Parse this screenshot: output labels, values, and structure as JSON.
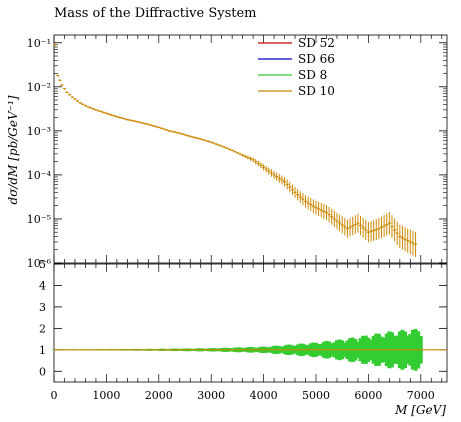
{
  "chart_data": [
    {
      "type": "scatter",
      "panel": "main",
      "title": "Mass of the Diffractive System",
      "xlabel": "",
      "ylabel": "dσ/dM [pb/GeV⁻¹]",
      "xlim": [
        0,
        7500
      ],
      "ylim": [
        1e-06,
        0.15
      ],
      "yscale": "log",
      "ytick_labels": [
        "10⁻¹",
        "10⁻²",
        "10⁻³",
        "10⁻⁴",
        "10⁻⁵",
        "10⁻⁶"
      ],
      "ytick_values": [
        0.1,
        0.01,
        0.001,
        0.0001,
        1e-05,
        1e-06
      ],
      "legend_position": "top-right",
      "series": [
        {
          "name": "SD 52",
          "color": "#cc0000"
        },
        {
          "name": "SD 66",
          "color": "#0000cc"
        },
        {
          "name": "SD 8",
          "color": "#33cc33"
        },
        {
          "name": "SD 10",
          "color": "#cc8800"
        }
      ],
      "points": [
        [
          25,
          0.09
        ],
        [
          75,
          0.018
        ],
        [
          150,
          0.011
        ],
        [
          250,
          0.0075
        ],
        [
          350,
          0.0058
        ],
        [
          500,
          0.0043
        ],
        [
          650,
          0.0035
        ],
        [
          800,
          0.003
        ],
        [
          1000,
          0.0025
        ],
        [
          1200,
          0.0021
        ],
        [
          1400,
          0.0018
        ],
        [
          1600,
          0.0016
        ],
        [
          1800,
          0.0014
        ],
        [
          2000,
          0.0012
        ],
        [
          2200,
          0.001
        ],
        [
          2400,
          0.00088
        ],
        [
          2600,
          0.00075
        ],
        [
          2800,
          0.00065
        ],
        [
          3000,
          0.00055
        ],
        [
          3200,
          0.00045
        ],
        [
          3400,
          0.00036
        ],
        [
          3600,
          0.00028
        ],
        [
          3800,
          0.00022
        ],
        [
          4000,
          0.00015
        ],
        [
          4200,
          0.0001
        ],
        [
          4400,
          7e-05
        ],
        [
          4600,
          4e-05
        ],
        [
          4800,
          2.5e-05
        ],
        [
          5000,
          1.8e-05
        ],
        [
          5200,
          1.4e-05
        ],
        [
          5400,
          9e-06
        ],
        [
          5600,
          6e-06
        ],
        [
          5800,
          8e-06
        ],
        [
          6000,
          5e-06
        ],
        [
          6200,
          6e-06
        ],
        [
          6400,
          8e-06
        ],
        [
          6600,
          4e-06
        ],
        [
          6800,
          3e-06
        ],
        [
          6950,
          2.5e-06
        ]
      ]
    },
    {
      "type": "line",
      "panel": "ratio",
      "xlabel": "M [GeV]",
      "ylabel": "",
      "xlim": [
        0,
        7500
      ],
      "ylim": [
        -0.5,
        5
      ],
      "ytick_labels": [
        "0",
        "1",
        "2",
        "3",
        "4",
        "5"
      ],
      "ytick_values": [
        0,
        1,
        2,
        3,
        4,
        5
      ],
      "xtick_labels": [
        "0",
        "1000",
        "2000",
        "3000",
        "4000",
        "5000",
        "6000",
        "7000"
      ],
      "xtick_values": [
        0,
        1000,
        2000,
        3000,
        4000,
        5000,
        6000,
        7000
      ],
      "reference": 1,
      "band_halfwidth": [
        [
          0,
          0.02
        ],
        [
          1000,
          0.03
        ],
        [
          2000,
          0.05
        ],
        [
          3000,
          0.08
        ],
        [
          4000,
          0.15
        ],
        [
          4500,
          0.25
        ],
        [
          5000,
          0.35
        ],
        [
          5500,
          0.5
        ],
        [
          6000,
          0.7
        ],
        [
          6500,
          0.9
        ],
        [
          7000,
          1.0
        ]
      ]
    }
  ]
}
